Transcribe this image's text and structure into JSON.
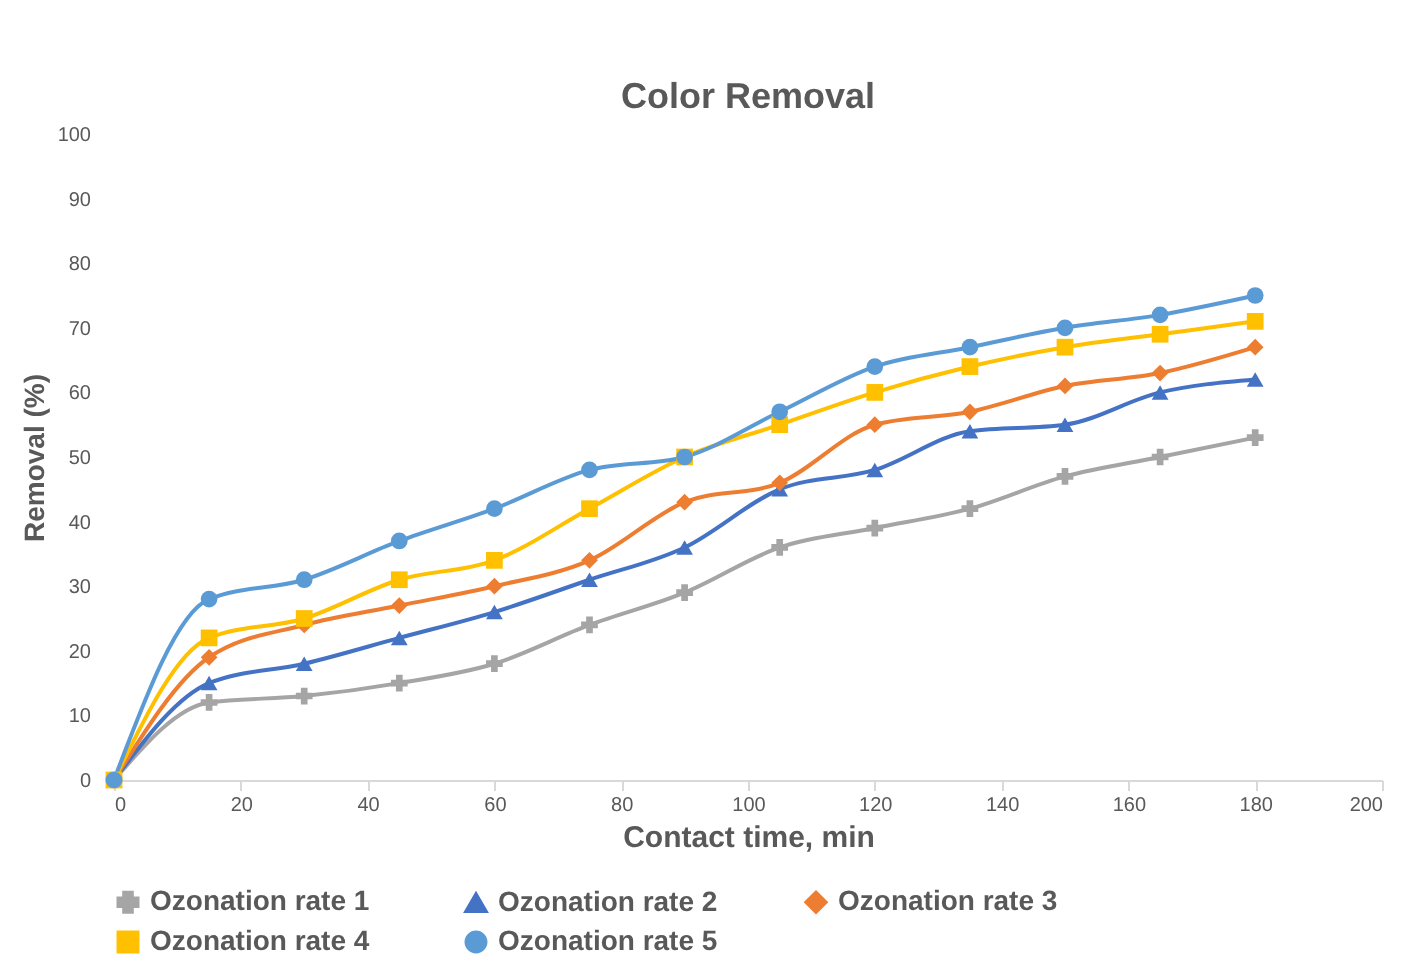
{
  "chart_data": {
    "type": "line",
    "title": "Color  Removal",
    "xlabel": "Contact time,  min",
    "ylabel": "Removal (%)",
    "x": [
      0,
      15,
      30,
      45,
      60,
      75,
      90,
      105,
      120,
      135,
      150,
      165,
      180
    ],
    "xlim": [
      0,
      200
    ],
    "xticks": [
      0,
      20,
      40,
      60,
      80,
      100,
      120,
      140,
      160,
      180,
      200
    ],
    "ylim": [
      0,
      100
    ],
    "yticks": [
      0,
      10,
      20,
      30,
      40,
      50,
      60,
      70,
      80,
      90,
      100
    ],
    "grid": false,
    "legend": "bottom",
    "series": [
      {
        "name": "Ozonation  rate 1",
        "color": "#a5a5a5",
        "marker": "cross",
        "values": [
          0,
          12,
          13,
          15,
          18,
          24,
          29,
          36,
          39,
          42,
          47,
          50,
          53
        ]
      },
      {
        "name": "Ozonation rate 2",
        "color": "#4472c4",
        "marker": "triangle",
        "values": [
          0,
          15,
          18,
          22,
          26,
          31,
          36,
          45,
          48,
          54,
          55,
          60,
          62
        ]
      },
      {
        "name": "Ozonation rate 3",
        "color": "#ed7d31",
        "marker": "diamond",
        "values": [
          0,
          19,
          24,
          27,
          30,
          34,
          43,
          46,
          55,
          57,
          61,
          63,
          67
        ]
      },
      {
        "name": "Ozonation rate 4",
        "color": "#ffc000",
        "marker": "square",
        "values": [
          0,
          22,
          25,
          31,
          34,
          42,
          50,
          55,
          60,
          64,
          67,
          69,
          71
        ]
      },
      {
        "name": "Ozonation rate 5",
        "color": "#5b9bd5",
        "marker": "circle",
        "values": [
          0,
          28,
          31,
          37,
          42,
          48,
          50,
          57,
          64,
          67,
          70,
          72,
          75
        ]
      }
    ]
  }
}
